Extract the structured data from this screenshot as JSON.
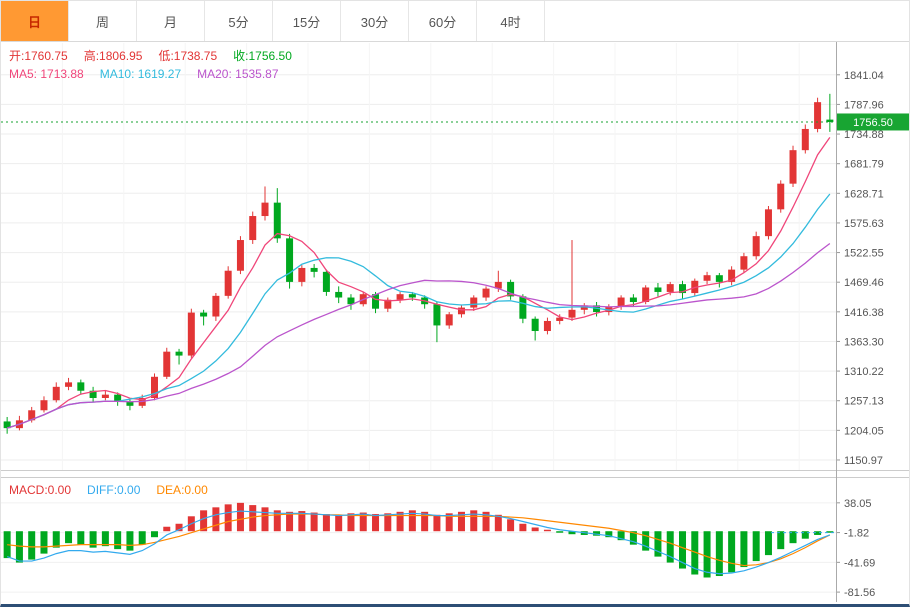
{
  "colors": {
    "up": "#e23535",
    "down": "#00a81f",
    "ma5": "#f0467a",
    "ma10": "#33bbdd",
    "ma20": "#bb55cc",
    "diff": "#33aaee",
    "dea": "#ff8800",
    "badge": "#18a532",
    "price_line": "#15a02f",
    "active_tab_bg": "#ff9933",
    "active_tab_text": "#c62800"
  },
  "tabs": {
    "items": [
      {
        "name": "day",
        "label": "日",
        "active": true
      },
      {
        "name": "week",
        "label": "周",
        "active": false
      },
      {
        "name": "month",
        "label": "月",
        "active": false
      },
      {
        "name": "min5",
        "label": "5分",
        "active": false
      },
      {
        "name": "min15",
        "label": "15分",
        "active": false
      },
      {
        "name": "min30",
        "label": "30分",
        "active": false
      },
      {
        "name": "min60",
        "label": "60分",
        "active": false
      },
      {
        "name": "hour4",
        "label": "4时",
        "active": false
      }
    ]
  },
  "legend": {
    "ohlc": [
      {
        "name": "open",
        "label": "开",
        "value": "1760.75",
        "color": "#e23535"
      },
      {
        "name": "high",
        "label": "高",
        "value": "1806.95",
        "color": "#e23535"
      },
      {
        "name": "low",
        "label": "低",
        "value": "1738.75",
        "color": "#e23535"
      },
      {
        "name": "close",
        "label": "收",
        "value": "1756.50",
        "color": "#00a81f"
      }
    ],
    "ma": [
      {
        "name": "ma5",
        "label": "MA5",
        "value": "1713.88",
        "color": "#f0467a"
      },
      {
        "name": "ma10",
        "label": "MA10",
        "value": "1619.27",
        "color": "#33bbdd"
      },
      {
        "name": "ma20",
        "label": "MA20",
        "value": "1535.87",
        "color": "#bb55cc"
      }
    ],
    "macd": [
      {
        "name": "macd",
        "label": "MACD",
        "value": "0.00",
        "color": "#e23535"
      },
      {
        "name": "diff",
        "label": "DIFF",
        "value": "0.00",
        "color": "#33aaee"
      },
      {
        "name": "dea",
        "label": "DEA",
        "value": "0.00",
        "color": "#ff8800"
      }
    ]
  },
  "chart_data": {
    "type": "candlestick",
    "title": "",
    "main": {
      "type": "candlestick",
      "ylim": [
        1133,
        1898
      ],
      "axis_labels": [
        "1841.04",
        "1787.96",
        "1734.88",
        "1681.79",
        "1628.71",
        "1575.63",
        "1522.55",
        "1469.46",
        "1416.38",
        "1363.30",
        "1310.22",
        "1257.13",
        "1204.05",
        "1150.97"
      ],
      "current_price": 1756.5,
      "current_price_label": "1756.50",
      "ma_periods": [
        5,
        10,
        20
      ],
      "candles": [
        [
          1220,
          1228,
          1198,
          1208
        ],
        [
          1208,
          1230,
          1204,
          1222
        ],
        [
          1222,
          1246,
          1218,
          1240
        ],
        [
          1240,
          1265,
          1236,
          1258
        ],
        [
          1258,
          1290,
          1254,
          1282
        ],
        [
          1282,
          1298,
          1276,
          1290
        ],
        [
          1290,
          1295,
          1268,
          1275
        ],
        [
          1275,
          1282,
          1255,
          1262
        ],
        [
          1262,
          1275,
          1258,
          1268
        ],
        [
          1268,
          1272,
          1248,
          1255
        ],
        [
          1255,
          1260,
          1240,
          1248
        ],
        [
          1248,
          1268,
          1244,
          1262
        ],
        [
          1262,
          1306,
          1258,
          1300
        ],
        [
          1300,
          1352,
          1296,
          1345
        ],
        [
          1345,
          1350,
          1322,
          1338
        ],
        [
          1338,
          1422,
          1334,
          1415
        ],
        [
          1415,
          1420,
          1392,
          1408
        ],
        [
          1408,
          1450,
          1400,
          1445
        ],
        [
          1445,
          1498,
          1440,
          1490
        ],
        [
          1490,
          1552,
          1484,
          1545
        ],
        [
          1545,
          1596,
          1538,
          1588
        ],
        [
          1588,
          1641,
          1580,
          1612
        ],
        [
          1612,
          1638,
          1540,
          1548
        ],
        [
          1548,
          1556,
          1458,
          1470
        ],
        [
          1470,
          1500,
          1462,
          1495
        ],
        [
          1495,
          1502,
          1478,
          1488
        ],
        [
          1488,
          1492,
          1445,
          1452
        ],
        [
          1452,
          1462,
          1432,
          1442
        ],
        [
          1442,
          1448,
          1420,
          1430
        ],
        [
          1430,
          1452,
          1426,
          1448
        ],
        [
          1448,
          1452,
          1414,
          1422
        ],
        [
          1422,
          1442,
          1416,
          1438
        ],
        [
          1438,
          1452,
          1432,
          1448
        ],
        [
          1448,
          1452,
          1436,
          1442
        ],
        [
          1442,
          1446,
          1422,
          1430
        ],
        [
          1430,
          1434,
          1362,
          1392
        ],
        [
          1392,
          1416,
          1386,
          1412
        ],
        [
          1412,
          1428,
          1406,
          1424
        ],
        [
          1424,
          1446,
          1418,
          1442
        ],
        [
          1442,
          1462,
          1436,
          1458
        ],
        [
          1458,
          1490,
          1452,
          1470
        ],
        [
          1470,
          1474,
          1438,
          1444
        ],
        [
          1444,
          1448,
          1396,
          1404
        ],
        [
          1404,
          1408,
          1365,
          1382
        ],
        [
          1382,
          1406,
          1376,
          1400
        ],
        [
          1400,
          1412,
          1394,
          1406
        ],
        [
          1406,
          1545,
          1400,
          1420
        ],
        [
          1420,
          1432,
          1412,
          1428
        ],
        [
          1428,
          1434,
          1408,
          1416
        ],
        [
          1416,
          1430,
          1410,
          1426
        ],
        [
          1426,
          1446,
          1420,
          1442
        ],
        [
          1442,
          1448,
          1426,
          1434
        ],
        [
          1434,
          1464,
          1430,
          1460
        ],
        [
          1460,
          1468,
          1444,
          1452
        ],
        [
          1452,
          1470,
          1446,
          1466
        ],
        [
          1466,
          1472,
          1440,
          1450
        ],
        [
          1450,
          1476,
          1444,
          1472
        ],
        [
          1472,
          1488,
          1466,
          1482
        ],
        [
          1482,
          1486,
          1460,
          1470
        ],
        [
          1470,
          1498,
          1464,
          1492
        ],
        [
          1492,
          1522,
          1486,
          1516
        ],
        [
          1516,
          1560,
          1510,
          1552
        ],
        [
          1552,
          1606,
          1546,
          1600
        ],
        [
          1600,
          1652,
          1594,
          1646
        ],
        [
          1646,
          1714,
          1640,
          1706
        ],
        [
          1706,
          1752,
          1700,
          1744
        ],
        [
          1744,
          1800,
          1738,
          1792
        ],
        [
          1760.75,
          1806.95,
          1738.75,
          1756.5
        ]
      ]
    },
    "macd": {
      "type": "bar",
      "ylim": [
        -90.8,
        71.3
      ],
      "axis_labels": [
        "38.05",
        "-1.82",
        "-41.69",
        "-81.56"
      ],
      "dashed_level": -1.82,
      "histogram": [
        -36,
        -42,
        -38,
        -30,
        -22,
        -16,
        -18,
        -22,
        -20,
        -24,
        -26,
        -18,
        -8,
        6,
        10,
        20,
        28,
        32,
        36,
        38,
        35,
        32,
        28,
        26,
        27,
        25,
        23,
        22,
        24,
        25,
        23,
        24,
        26,
        28,
        26,
        22,
        24,
        26,
        28,
        26,
        22,
        16,
        10,
        5,
        2,
        -2,
        -4,
        -5,
        -6,
        -8,
        -12,
        -18,
        -26,
        -34,
        -42,
        -50,
        -58,
        -62,
        -60,
        -55,
        -48,
        -40,
        -32,
        -24,
        -16,
        -10,
        -5,
        -2
      ],
      "diff": [
        -34,
        -40,
        -40,
        -36,
        -30,
        -26,
        -26,
        -28,
        -27,
        -29,
        -31,
        -26,
        -17,
        -5,
        2,
        10,
        17,
        22,
        25,
        27,
        26,
        25,
        24,
        24,
        24,
        23,
        22,
        21,
        22,
        23,
        21,
        22,
        23,
        24,
        23,
        21,
        21,
        22,
        23,
        22,
        20,
        17,
        13,
        9,
        5,
        2,
        0,
        -2,
        -4,
        -6,
        -10,
        -14,
        -20,
        -27,
        -34,
        -42,
        -50,
        -55,
        -57,
        -56,
        -53,
        -48,
        -42,
        -35,
        -27,
        -19,
        -11,
        -5
      ],
      "dea": [
        -18,
        -20,
        -21,
        -21,
        -20,
        -19,
        -18,
        -18,
        -18,
        -18,
        -19,
        -18,
        -15,
        -11,
        -7,
        -2,
        3,
        8,
        13,
        16,
        19,
        21,
        22,
        23,
        23,
        23,
        22,
        22,
        21,
        21,
        21,
        21,
        21,
        21,
        21,
        21,
        20,
        20,
        20,
        20,
        20,
        19,
        18,
        16,
        14,
        12,
        10,
        8,
        6,
        4,
        1,
        -2,
        -6,
        -11,
        -16,
        -22,
        -28,
        -34,
        -39,
        -43,
        -46,
        -45,
        -42,
        -37,
        -30,
        -22,
        -13,
        -5
      ]
    }
  }
}
